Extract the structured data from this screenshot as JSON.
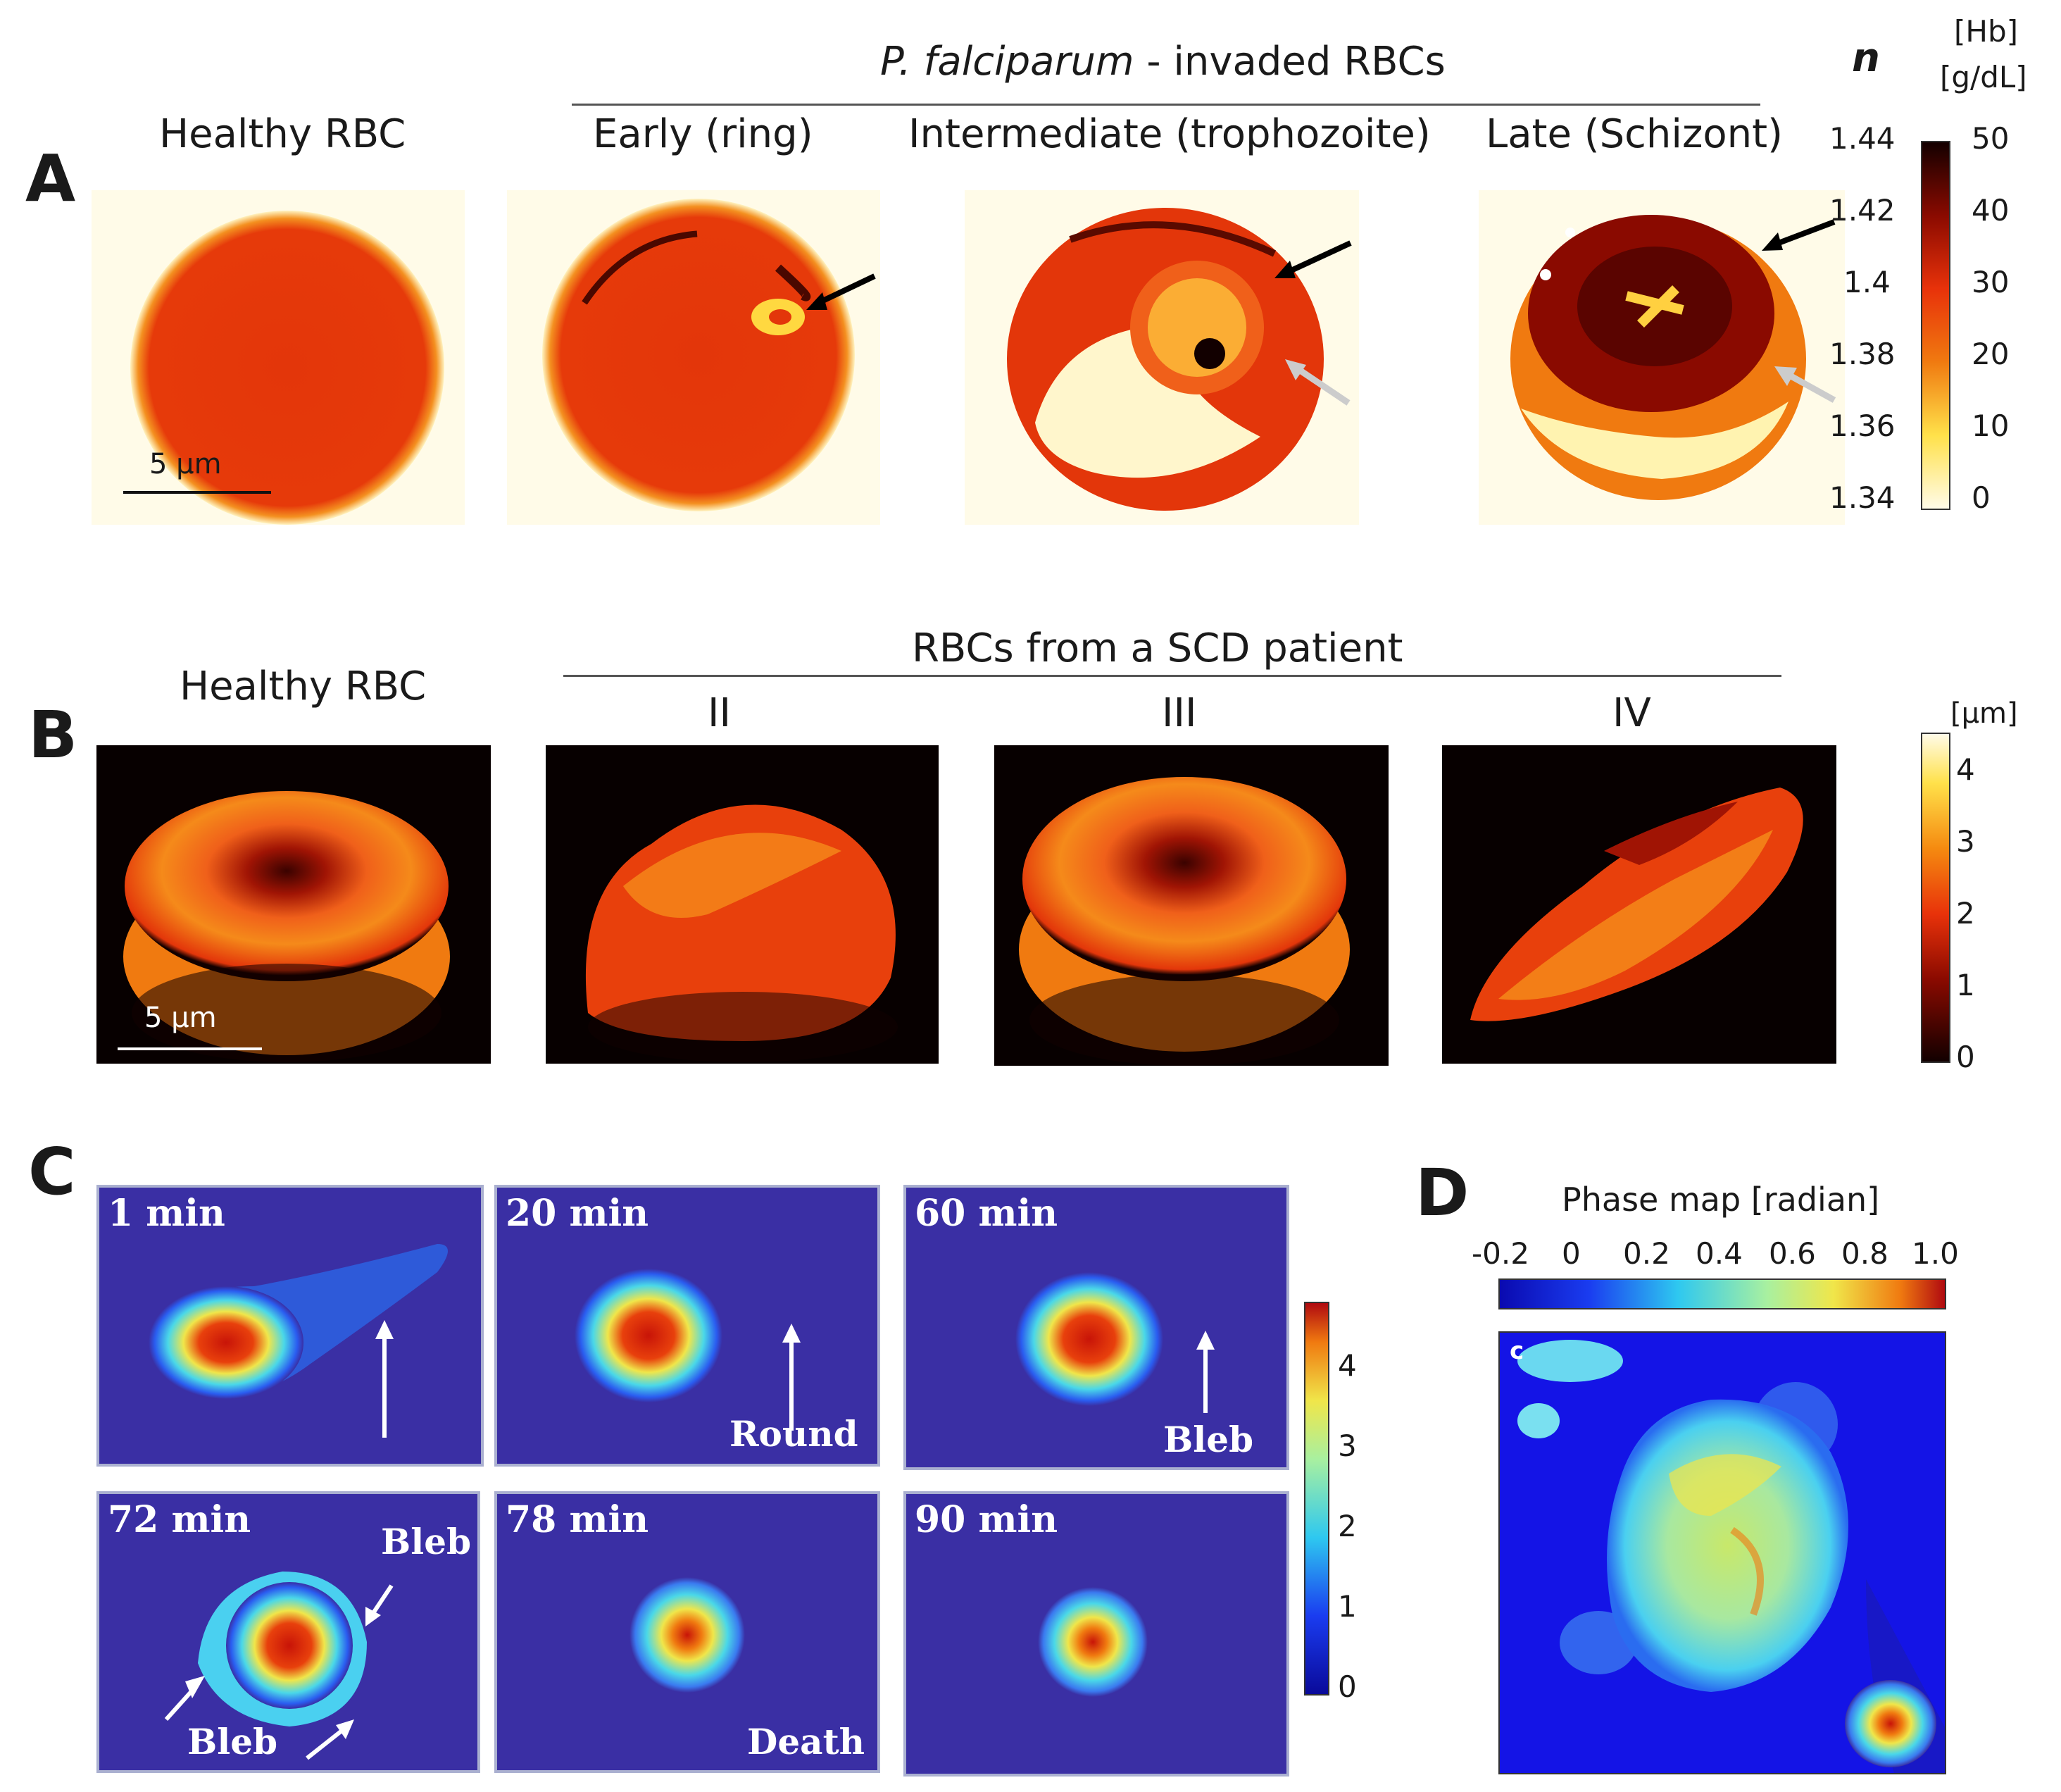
{
  "panels": {
    "A": {
      "label": "A",
      "group_title_italic": "P. falciparum",
      "group_title_rest": " - invaded RBCs",
      "columns": [
        "Healthy RBC",
        "Early (ring)",
        "Intermediate (trophozoite)",
        "Late (Schizont)"
      ],
      "scale_bar": "5 μm",
      "colorbar": {
        "n_label": "n",
        "hb_label_line1": "[Hb]",
        "hb_label_line2": "[g/dL]",
        "n_ticks": [
          "1.44",
          "1.42",
          "1.4",
          "1.38",
          "1.36",
          "1.34"
        ],
        "hb_ticks": [
          "50",
          "40",
          "30",
          "20",
          "10",
          "0"
        ]
      }
    },
    "B": {
      "label": "B",
      "left_title": "Healthy RBC",
      "group_title": "RBCs from a SCD patient",
      "columns": [
        "II",
        "III",
        "IV"
      ],
      "scale_bar": "5 μm",
      "colorbar": {
        "unit": "[μm]",
        "ticks": [
          "4",
          "3",
          "2",
          "1",
          "0"
        ]
      }
    },
    "C": {
      "label": "C",
      "frames": [
        {
          "time": "1 min",
          "note": ""
        },
        {
          "time": "20 min",
          "note": "Round"
        },
        {
          "time": "60 min",
          "note": "Bleb"
        },
        {
          "time": "72 min",
          "note_top": "Bleb",
          "note_bottom": "Bleb"
        },
        {
          "time": "78 min",
          "note": "Death"
        },
        {
          "time": "90 min",
          "note": ""
        }
      ],
      "colorbar": {
        "ticks": [
          "4",
          "3",
          "2",
          "1",
          "0"
        ]
      }
    },
    "D": {
      "label": "D",
      "title": "Phase map [radian]",
      "ticks": [
        "-0.2",
        "0",
        "0.2",
        "0.4",
        "0.6",
        "0.8",
        "1.0"
      ],
      "corner_letter": "c"
    }
  },
  "colors": {
    "hot_dark": "#1a0000",
    "hot_red": "#d42a00",
    "hot_orange": "#f07a10",
    "hot_yellow": "#ffe14a",
    "hot_white": "#fffbe8",
    "jet_navy": "#3a2fa4",
    "jet_blue": "#1a1ae8",
    "jet_cyan": "#2ec8f0",
    "jet_yellow": "#f0e64a",
    "jet_red": "#d01a10"
  }
}
